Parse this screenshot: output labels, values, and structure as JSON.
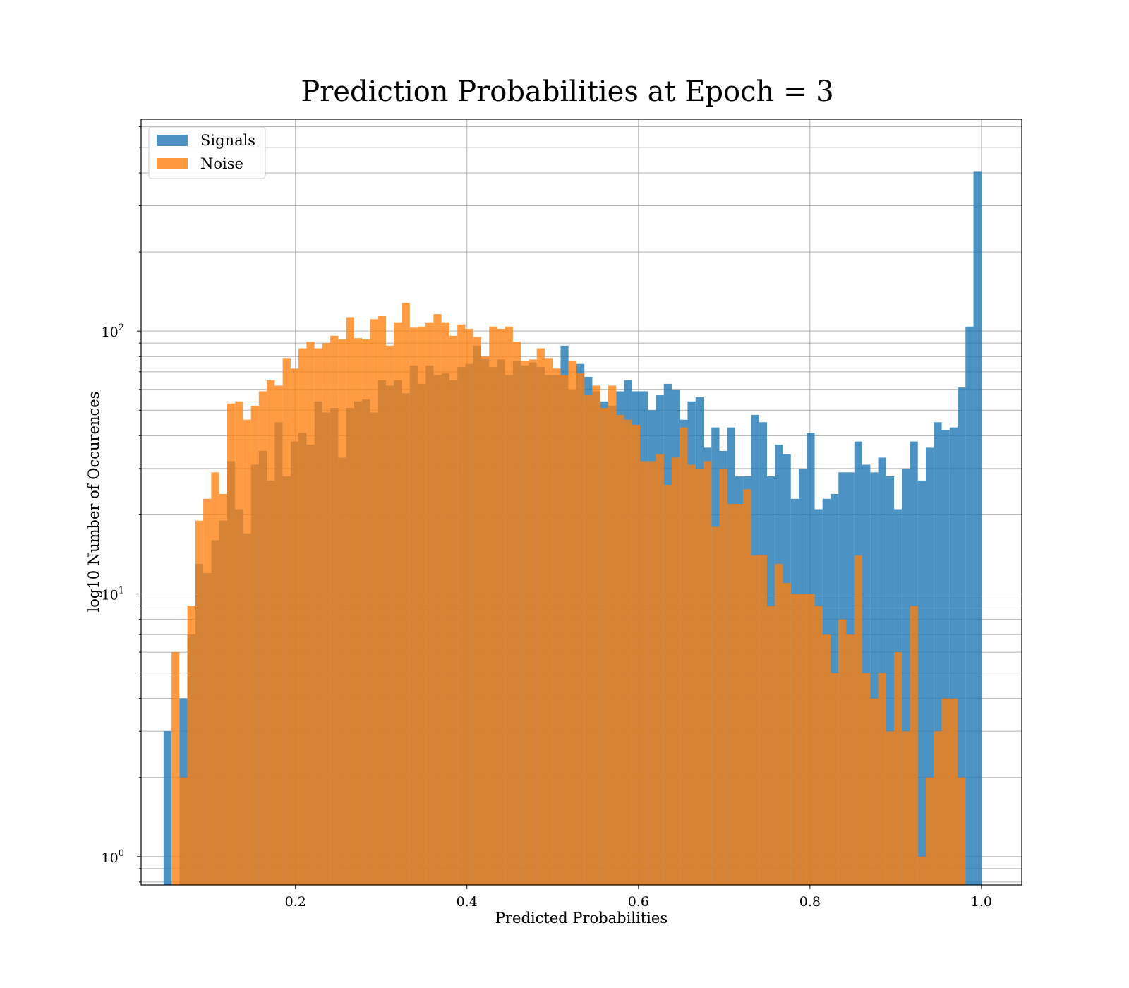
{
  "chart_data": {
    "type": "bar",
    "title": "Prediction Probabilities at Epoch = 3",
    "xlabel": "Predicted Probabilities",
    "ylabel": "log10 Number of Occurences",
    "xlim": [
      0.02,
      1.047
    ],
    "ylim": [
      0.78,
      640
    ],
    "yscale": "log",
    "grid": true,
    "legend_position": "top-left",
    "x_ticks": [
      {
        "value": 0.2,
        "label": "0.2"
      },
      {
        "value": 0.4,
        "label": "0.4"
      },
      {
        "value": 0.6,
        "label": "0.6"
      },
      {
        "value": 0.8,
        "label": "0.8"
      },
      {
        "value": 1.0,
        "label": "1.0"
      }
    ],
    "y_major_ticks": [
      {
        "value": 1,
        "base": "10",
        "exp": "0"
      },
      {
        "value": 10,
        "base": "10",
        "exp": "1"
      },
      {
        "value": 100,
        "base": "10",
        "exp": "2"
      }
    ],
    "series": [
      {
        "name": "Signals",
        "color": "#1f77b4",
        "bins": [
          [
            0.0462,
            0.0555,
            3
          ],
          [
            0.0647,
            0.074,
            4
          ],
          [
            0.074,
            0.0833,
            7
          ],
          [
            0.0833,
            0.0925,
            13
          ],
          [
            0.0925,
            0.1018,
            12
          ],
          [
            0.1018,
            0.111,
            16
          ],
          [
            0.111,
            0.1203,
            19
          ],
          [
            0.1203,
            0.1296,
            32
          ],
          [
            0.1296,
            0.1388,
            21
          ],
          [
            0.1388,
            0.1481,
            17
          ],
          [
            0.1481,
            0.1573,
            31
          ],
          [
            0.1573,
            0.1666,
            35
          ],
          [
            0.1666,
            0.1759,
            27
          ],
          [
            0.1759,
            0.1851,
            45
          ],
          [
            0.1851,
            0.1944,
            28
          ],
          [
            0.1944,
            0.2036,
            38
          ],
          [
            0.2036,
            0.2129,
            41
          ],
          [
            0.2129,
            0.2222,
            37
          ],
          [
            0.2222,
            0.2314,
            54
          ],
          [
            0.2314,
            0.2407,
            49
          ],
          [
            0.2407,
            0.2499,
            51
          ],
          [
            0.2499,
            0.2592,
            33
          ],
          [
            0.2592,
            0.2685,
            51
          ],
          [
            0.2685,
            0.2777,
            54
          ],
          [
            0.2777,
            0.287,
            55
          ],
          [
            0.287,
            0.2962,
            49
          ],
          [
            0.2962,
            0.3055,
            65
          ],
          [
            0.3055,
            0.3147,
            62
          ],
          [
            0.3147,
            0.324,
            65
          ],
          [
            0.324,
            0.3333,
            58
          ],
          [
            0.3333,
            0.3425,
            74
          ],
          [
            0.3425,
            0.3518,
            63
          ],
          [
            0.3518,
            0.361,
            74
          ],
          [
            0.361,
            0.3703,
            68
          ],
          [
            0.3703,
            0.3796,
            69
          ],
          [
            0.3796,
            0.3888,
            65
          ],
          [
            0.3888,
            0.3981,
            73
          ],
          [
            0.3981,
            0.4073,
            75
          ],
          [
            0.4073,
            0.4166,
            88
          ],
          [
            0.4166,
            0.4259,
            79
          ],
          [
            0.4259,
            0.4351,
            73
          ],
          [
            0.4351,
            0.4444,
            78
          ],
          [
            0.4444,
            0.4536,
            68
          ],
          [
            0.4536,
            0.4629,
            77
          ],
          [
            0.4629,
            0.4722,
            74
          ],
          [
            0.4722,
            0.4814,
            76
          ],
          [
            0.4814,
            0.4907,
            73
          ],
          [
            0.4907,
            0.4999,
            68
          ],
          [
            0.4999,
            0.5092,
            68
          ],
          [
            0.5092,
            0.5184,
            88
          ],
          [
            0.5184,
            0.5277,
            60
          ],
          [
            0.5277,
            0.537,
            75
          ],
          [
            0.537,
            0.5462,
            67
          ],
          [
            0.5462,
            0.5555,
            59
          ],
          [
            0.5555,
            0.5647,
            54
          ],
          [
            0.5647,
            0.574,
            52
          ],
          [
            0.574,
            0.5833,
            59
          ],
          [
            0.5833,
            0.5925,
            65
          ],
          [
            0.5925,
            0.6018,
            59
          ],
          [
            0.6018,
            0.611,
            59
          ],
          [
            0.611,
            0.6203,
            50
          ],
          [
            0.6203,
            0.6296,
            57
          ],
          [
            0.6296,
            0.6388,
            63
          ],
          [
            0.6388,
            0.6481,
            60
          ],
          [
            0.6481,
            0.6573,
            46
          ],
          [
            0.6573,
            0.6666,
            54
          ],
          [
            0.6666,
            0.6759,
            56
          ],
          [
            0.6759,
            0.6851,
            36
          ],
          [
            0.6851,
            0.6944,
            43
          ],
          [
            0.6944,
            0.7036,
            35
          ],
          [
            0.7036,
            0.7129,
            43
          ],
          [
            0.7129,
            0.7221,
            28
          ],
          [
            0.7221,
            0.7314,
            28
          ],
          [
            0.7314,
            0.7407,
            48
          ],
          [
            0.7407,
            0.7499,
            45
          ],
          [
            0.7499,
            0.7592,
            28
          ],
          [
            0.7592,
            0.7684,
            37
          ],
          [
            0.7684,
            0.7777,
            34
          ],
          [
            0.7777,
            0.787,
            23
          ],
          [
            0.787,
            0.7962,
            30
          ],
          [
            0.7962,
            0.8055,
            41
          ],
          [
            0.8055,
            0.8147,
            21
          ],
          [
            0.8147,
            0.824,
            23
          ],
          [
            0.824,
            0.8333,
            24
          ],
          [
            0.8333,
            0.8425,
            29
          ],
          [
            0.8425,
            0.8518,
            29
          ],
          [
            0.8518,
            0.861,
            38
          ],
          [
            0.861,
            0.8703,
            31
          ],
          [
            0.8703,
            0.8796,
            29
          ],
          [
            0.8796,
            0.8888,
            33
          ],
          [
            0.8888,
            0.8981,
            28
          ],
          [
            0.8981,
            0.9073,
            21
          ],
          [
            0.9073,
            0.9166,
            30
          ],
          [
            0.9166,
            0.9258,
            38
          ],
          [
            0.9258,
            0.9351,
            27
          ],
          [
            0.9351,
            0.9444,
            36
          ],
          [
            0.9444,
            0.9536,
            45
          ],
          [
            0.9536,
            0.9629,
            42
          ],
          [
            0.9629,
            0.9721,
            43
          ],
          [
            0.9721,
            0.9814,
            61
          ],
          [
            0.9814,
            0.9907,
            104
          ],
          [
            0.9907,
            1.0,
            404
          ]
        ]
      },
      {
        "name": "Noise",
        "color": "#ff7f0e",
        "bins": [
          [
            0.0555,
            0.0647,
            6
          ],
          [
            0.0647,
            0.074,
            2
          ],
          [
            0.074,
            0.0833,
            9
          ],
          [
            0.0833,
            0.0925,
            19
          ],
          [
            0.0925,
            0.1018,
            23
          ],
          [
            0.1018,
            0.111,
            29
          ],
          [
            0.111,
            0.1203,
            24
          ],
          [
            0.1203,
            0.1296,
            53
          ],
          [
            0.1296,
            0.1388,
            54
          ],
          [
            0.1388,
            0.1481,
            46
          ],
          [
            0.1481,
            0.1573,
            52
          ],
          [
            0.1573,
            0.1666,
            59
          ],
          [
            0.1666,
            0.1759,
            65
          ],
          [
            0.1759,
            0.1851,
            62
          ],
          [
            0.1851,
            0.1944,
            79
          ],
          [
            0.1944,
            0.2036,
            72
          ],
          [
            0.2036,
            0.2129,
            86
          ],
          [
            0.2129,
            0.2222,
            91
          ],
          [
            0.2222,
            0.2314,
            86
          ],
          [
            0.2314,
            0.2407,
            90
          ],
          [
            0.2407,
            0.2499,
            96
          ],
          [
            0.2499,
            0.2592,
            93
          ],
          [
            0.2592,
            0.2685,
            113
          ],
          [
            0.2685,
            0.2777,
            94
          ],
          [
            0.2777,
            0.287,
            93
          ],
          [
            0.287,
            0.2962,
            111
          ],
          [
            0.2962,
            0.3055,
            114
          ],
          [
            0.3055,
            0.3147,
            88
          ],
          [
            0.3147,
            0.324,
            108
          ],
          [
            0.324,
            0.3333,
            128
          ],
          [
            0.3333,
            0.3425,
            103
          ],
          [
            0.3425,
            0.3518,
            104
          ],
          [
            0.3518,
            0.361,
            108
          ],
          [
            0.361,
            0.3703,
            116
          ],
          [
            0.3703,
            0.3796,
            108
          ],
          [
            0.3796,
            0.3888,
            96
          ],
          [
            0.3888,
            0.3981,
            106
          ],
          [
            0.3981,
            0.4073,
            102
          ],
          [
            0.4073,
            0.4166,
            95
          ],
          [
            0.4166,
            0.4259,
            80
          ],
          [
            0.4259,
            0.4351,
            104
          ],
          [
            0.4351,
            0.4444,
            102
          ],
          [
            0.4444,
            0.4536,
            104
          ],
          [
            0.4536,
            0.4629,
            91
          ],
          [
            0.4629,
            0.4722,
            77
          ],
          [
            0.4722,
            0.4814,
            78
          ],
          [
            0.4814,
            0.4907,
            86
          ],
          [
            0.4907,
            0.4999,
            79
          ],
          [
            0.4999,
            0.5092,
            72
          ],
          [
            0.5092,
            0.5184,
            68
          ],
          [
            0.5184,
            0.5277,
            77
          ],
          [
            0.5277,
            0.537,
            69
          ],
          [
            0.537,
            0.5462,
            57
          ],
          [
            0.5462,
            0.5555,
            62
          ],
          [
            0.5555,
            0.5647,
            51
          ],
          [
            0.5647,
            0.574,
            62
          ],
          [
            0.574,
            0.5833,
            48
          ],
          [
            0.5833,
            0.5925,
            46
          ],
          [
            0.5925,
            0.6018,
            44
          ],
          [
            0.6018,
            0.611,
            32
          ],
          [
            0.611,
            0.6203,
            32
          ],
          [
            0.6203,
            0.6296,
            34
          ],
          [
            0.6296,
            0.6388,
            26
          ],
          [
            0.6388,
            0.6481,
            33
          ],
          [
            0.6481,
            0.6573,
            43
          ],
          [
            0.6573,
            0.6666,
            31
          ],
          [
            0.6666,
            0.6759,
            30
          ],
          [
            0.6759,
            0.6851,
            32
          ],
          [
            0.6851,
            0.6944,
            18
          ],
          [
            0.6944,
            0.7036,
            30
          ],
          [
            0.7036,
            0.7129,
            22
          ],
          [
            0.7129,
            0.7221,
            22
          ],
          [
            0.7221,
            0.7314,
            25
          ],
          [
            0.7314,
            0.7407,
            14
          ],
          [
            0.7407,
            0.7499,
            14
          ],
          [
            0.7499,
            0.7592,
            9
          ],
          [
            0.7592,
            0.7684,
            13
          ],
          [
            0.7684,
            0.7777,
            11
          ],
          [
            0.7777,
            0.787,
            10
          ],
          [
            0.787,
            0.7962,
            10
          ],
          [
            0.7962,
            0.8055,
            10
          ],
          [
            0.8055,
            0.8147,
            9
          ],
          [
            0.8147,
            0.824,
            7
          ],
          [
            0.824,
            0.8333,
            5
          ],
          [
            0.8333,
            0.8425,
            8
          ],
          [
            0.8425,
            0.8518,
            7
          ],
          [
            0.8518,
            0.861,
            14
          ],
          [
            0.861,
            0.8703,
            5
          ],
          [
            0.8703,
            0.8796,
            4
          ],
          [
            0.8796,
            0.8888,
            5
          ],
          [
            0.8888,
            0.8981,
            3
          ],
          [
            0.8981,
            0.9073,
            6
          ],
          [
            0.9073,
            0.9166,
            3
          ],
          [
            0.9166,
            0.9258,
            9
          ],
          [
            0.9258,
            0.9351,
            1
          ],
          [
            0.9351,
            0.9444,
            2
          ],
          [
            0.9444,
            0.9536,
            3
          ],
          [
            0.9536,
            0.9629,
            4
          ],
          [
            0.9629,
            0.9721,
            4
          ],
          [
            0.9721,
            0.9814,
            2
          ]
        ]
      }
    ]
  }
}
